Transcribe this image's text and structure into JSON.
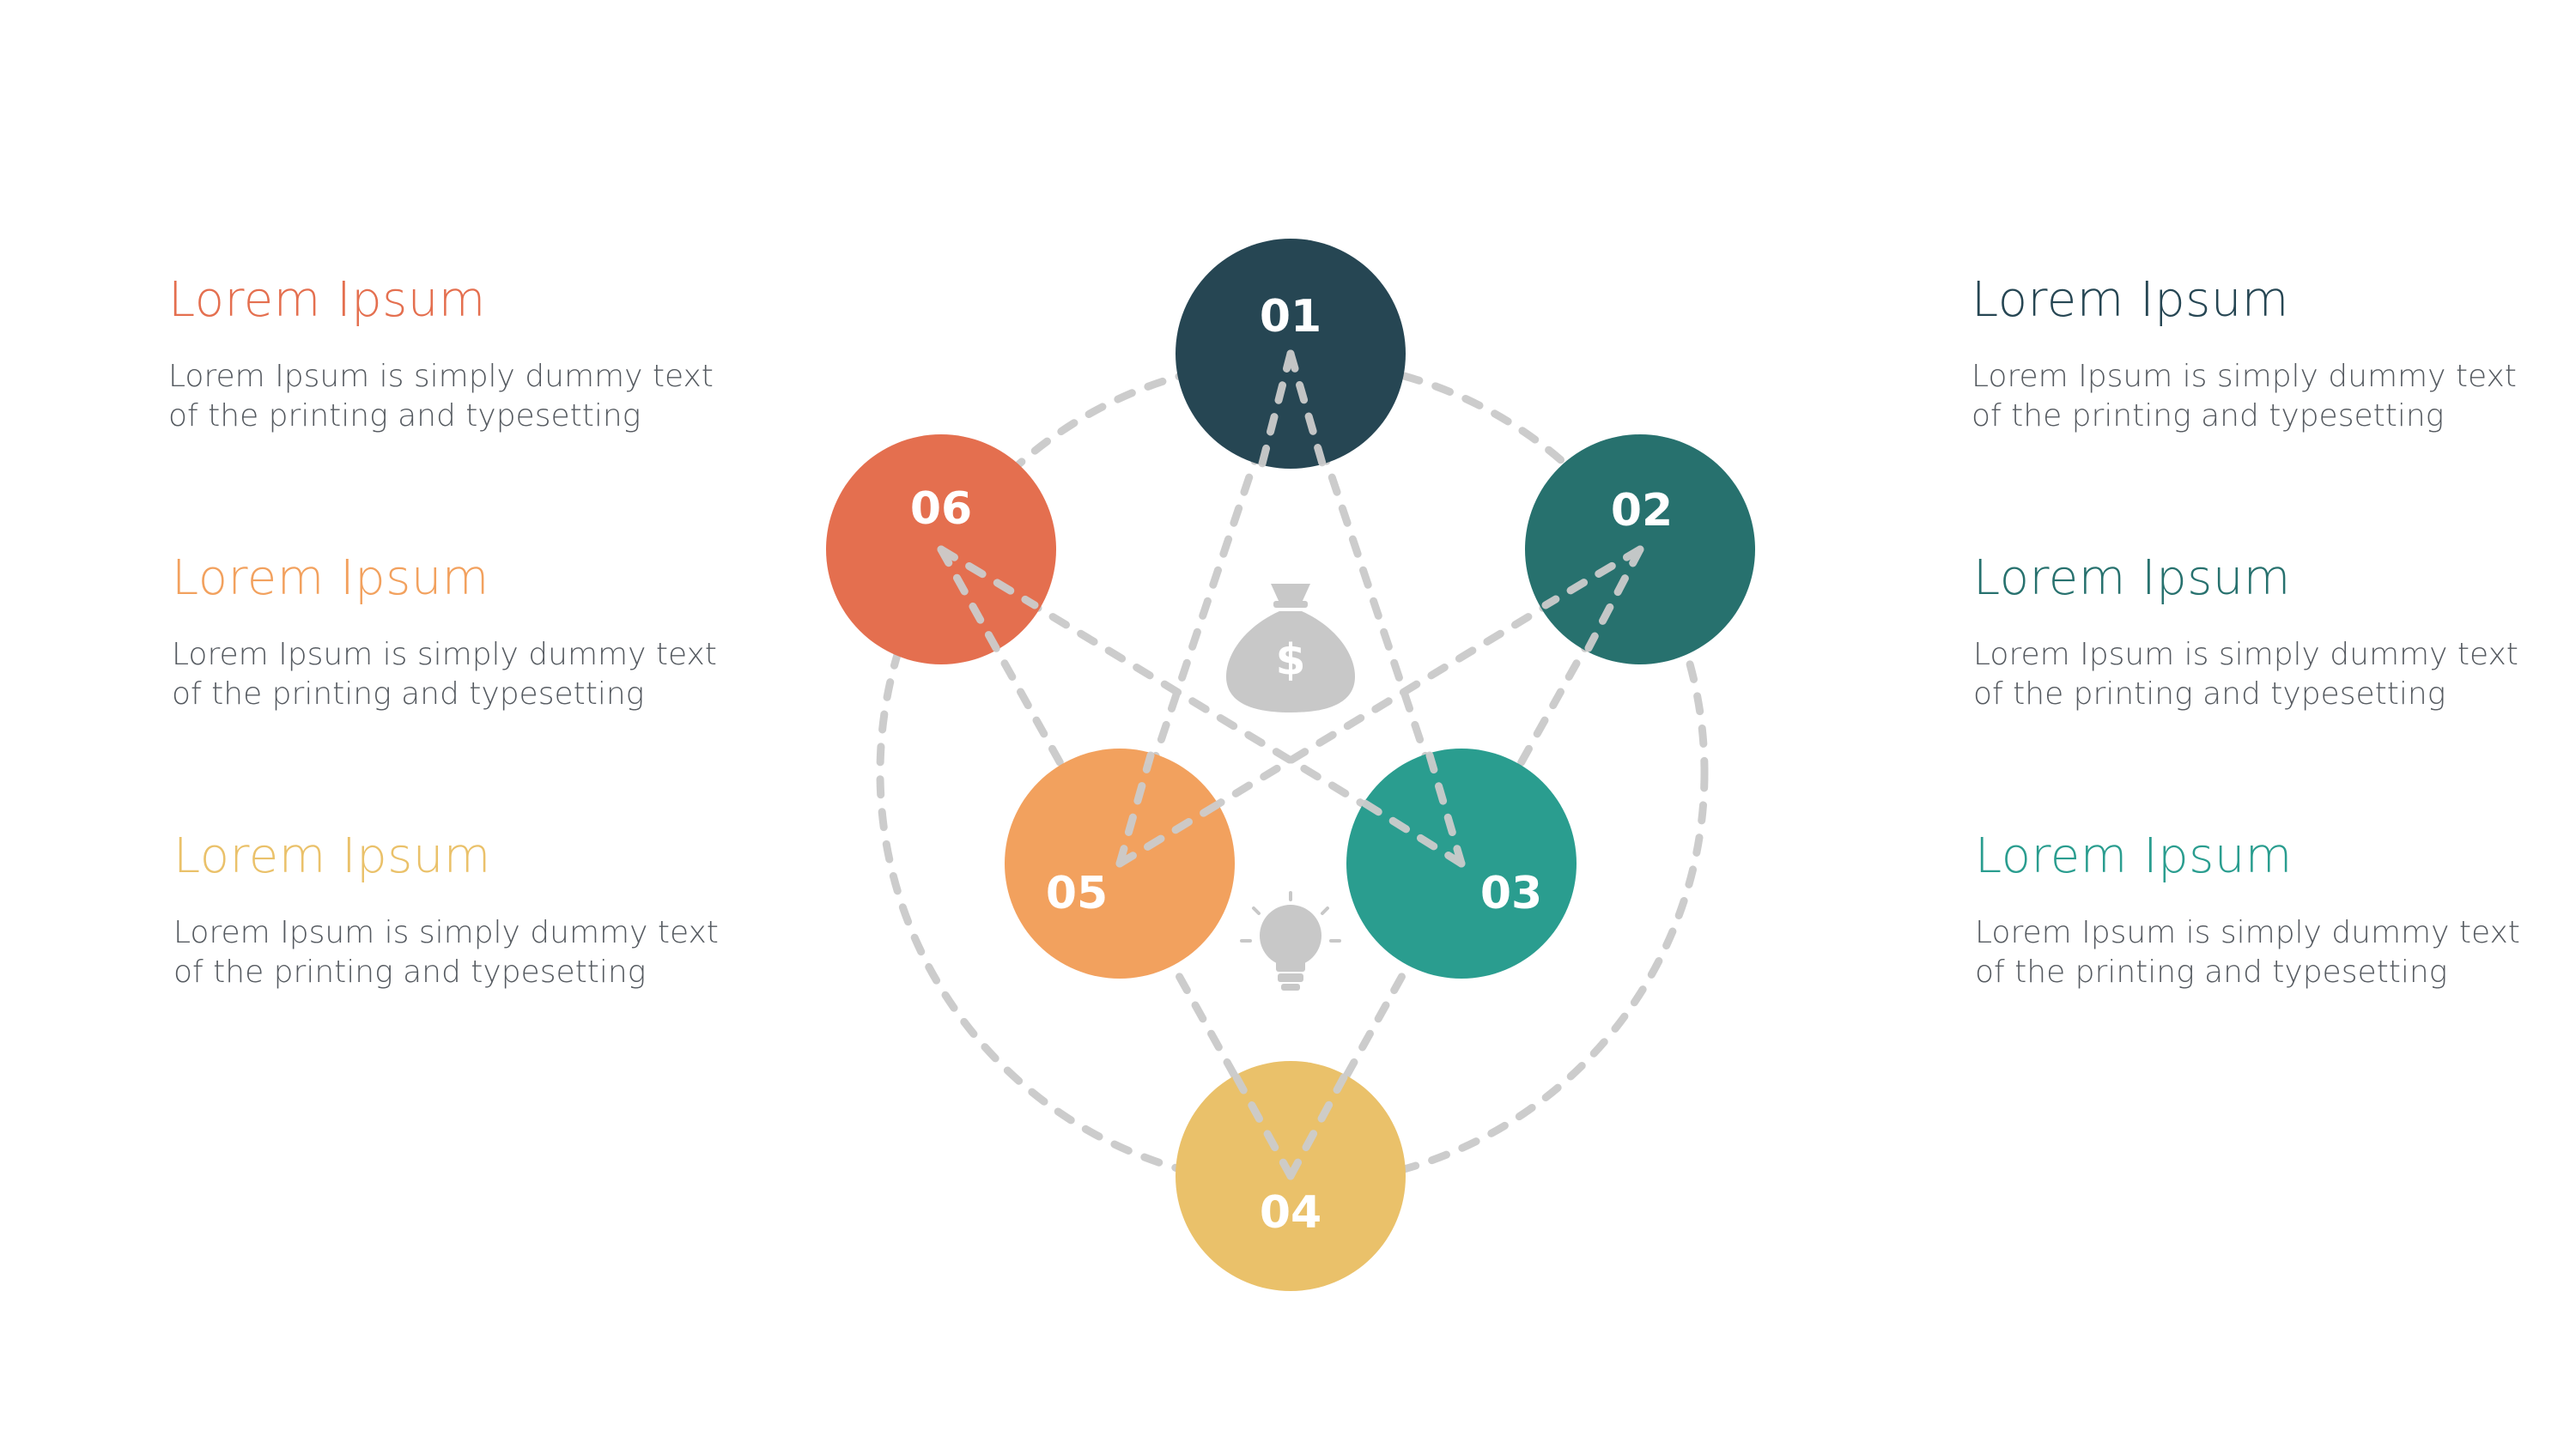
{
  "left_items": [
    {
      "title": "Lorem Ipsum",
      "desc": "Lorem Ipsum is simply dummy text of the printing and typesetting",
      "color": "#E46F4F"
    },
    {
      "title": "Lorem Ipsum",
      "desc": "Lorem Ipsum is simply dummy text of the printing and typesetting",
      "color": "#F2A15E"
    },
    {
      "title": "Lorem Ipsum",
      "desc": "Lorem Ipsum is simply dummy text of the printing and typesetting",
      "color": "#EAC16A"
    }
  ],
  "right_items": [
    {
      "title": "Lorem Ipsum",
      "desc": "Lorem Ipsum is simply dummy text of the printing and typesetting",
      "color": "#264653"
    },
    {
      "title": "Lorem Ipsum",
      "desc": "Lorem Ipsum is simply dummy text of the printing and typesetting",
      "color": "#27716E"
    },
    {
      "title": "Lorem Ipsum",
      "desc": "Lorem Ipsum is simply dummy text of the printing and typesetting",
      "color": "#2A9D8F"
    }
  ],
  "nodes": [
    {
      "label": "01",
      "color": "#264653"
    },
    {
      "label": "02",
      "color": "#27716E"
    },
    {
      "label": "03",
      "color": "#2A9D8F"
    },
    {
      "label": "04",
      "color": "#EAC16A"
    },
    {
      "label": "05",
      "color": "#F2A15E"
    },
    {
      "label": "06",
      "color": "#E46F4F"
    }
  ],
  "icons": [
    "money-bag-icon",
    "lightbulb-icon"
  ],
  "line_color": "#CCCCCC"
}
